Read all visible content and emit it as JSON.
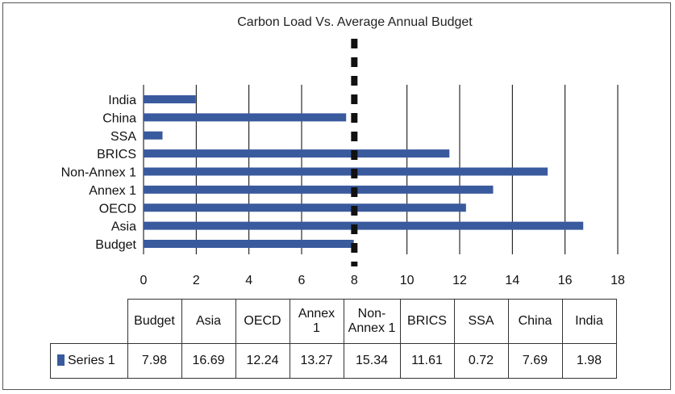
{
  "chart_data": {
    "type": "bar",
    "orientation": "horizontal",
    "title": "Carbon Load Vs. Average Annual Budget",
    "categories": [
      "Budget",
      "Asia",
      "OECD",
      "Annex 1",
      "Non-Annex 1",
      "BRICS",
      "SSA",
      "China",
      "India"
    ],
    "table_headers": [
      "Budget",
      "Asia",
      "OECD",
      "Annex\n1",
      "Non-\nAnnex 1",
      "BRICS",
      "SSA",
      "China",
      "India"
    ],
    "series": [
      {
        "name": "Series 1",
        "values": [
          7.98,
          16.69,
          12.24,
          13.27,
          15.34,
          11.61,
          0.72,
          7.69,
          1.98
        ],
        "display_values": [
          "7.98",
          "16.69",
          "12.24",
          "13.27",
          "15.34",
          "11.61",
          "0.72",
          "7.69",
          "1.98"
        ]
      }
    ],
    "xlim": [
      0,
      18
    ],
    "x_ticks": [
      0,
      2,
      4,
      6,
      8,
      10,
      12,
      14,
      16,
      18
    ],
    "reference_line": 8,
    "grid": "vertical",
    "colors": {
      "bar": "#3a5a9e",
      "grid": "#000000",
      "reference": "#111111"
    }
  }
}
